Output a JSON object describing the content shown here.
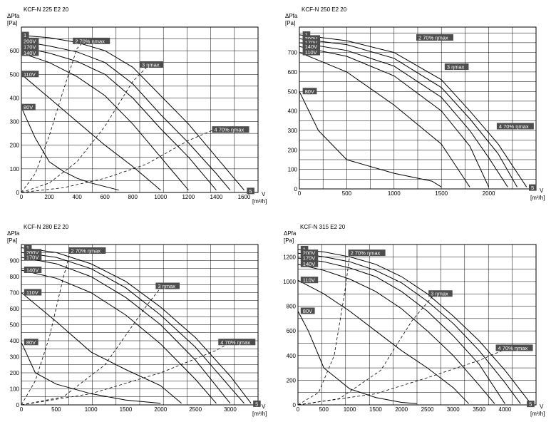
{
  "chart_data": [
    {
      "type": "line",
      "title": "KCF-N 225 E2 20",
      "ylabel": "ΔPfa",
      "yunit": "[Pa]",
      "xlabel": "V",
      "xunit": "[m³/h]",
      "xlim": [
        0,
        1700
      ],
      "ylim": [
        0,
        700
      ],
      "xticks": [
        0,
        200,
        400,
        600,
        800,
        1000,
        1200,
        1400,
        1600
      ],
      "yticks": [
        0,
        100,
        200,
        300,
        400,
        500,
        600
      ],
      "grid": true,
      "series": [
        {
          "name": "",
          "x": [
            0,
            200,
            400,
            600,
            800,
            1000,
            1200,
            1400,
            1600
          ],
          "y": [
            665,
            655,
            635,
            600,
            530,
            410,
            290,
            150,
            10
          ]
        },
        {
          "name": "200V",
          "x": [
            0,
            200,
            400,
            600,
            800,
            1000,
            1200,
            1400,
            1500
          ],
          "y": [
            640,
            620,
            595,
            550,
            460,
            330,
            210,
            80,
            10
          ]
        },
        {
          "name": "170V",
          "x": [
            0,
            200,
            400,
            600,
            800,
            1000,
            1200,
            1400
          ],
          "y": [
            615,
            590,
            555,
            500,
            400,
            270,
            150,
            10
          ]
        },
        {
          "name": "140V",
          "x": [
            0,
            200,
            400,
            600,
            800,
            1000,
            1100,
            1200
          ],
          "y": [
            590,
            550,
            490,
            410,
            290,
            150,
            80,
            10
          ]
        },
        {
          "name": "110V",
          "x": [
            0,
            200,
            400,
            600,
            800,
            900,
            1000
          ],
          "y": [
            500,
            400,
            300,
            200,
            110,
            60,
            10
          ]
        },
        {
          "name": "80V",
          "x": [
            0,
            100,
            200,
            300,
            400,
            500,
            600,
            700
          ],
          "y": [
            360,
            230,
            130,
            90,
            60,
            40,
            25,
            10
          ]
        }
      ],
      "system_lines": [
        {
          "name": "2 70% ηmax",
          "x": [
            0,
            100,
            200,
            300,
            400,
            450
          ],
          "y": [
            0,
            80,
            240,
            430,
            610,
            640
          ]
        },
        {
          "name": "3 ηmax",
          "x": [
            0,
            200,
            400,
            600,
            800,
            900
          ],
          "y": [
            0,
            40,
            130,
            280,
            470,
            530
          ]
        },
        {
          "name": "4 70% ηmax",
          "x": [
            0,
            300,
            600,
            900,
            1200,
            1400
          ],
          "y": [
            0,
            20,
            60,
            120,
            220,
            270
          ]
        }
      ],
      "labels": [
        {
          "text": "1",
          "x": 10,
          "y": 665
        },
        {
          "text": "200V",
          "x": 10,
          "y": 640
        },
        {
          "text": "170V",
          "x": 10,
          "y": 615
        },
        {
          "text": "140V",
          "x": 10,
          "y": 590
        },
        {
          "text": "110V",
          "x": 10,
          "y": 500
        },
        {
          "text": "80V",
          "x": 10,
          "y": 360
        },
        {
          "text": "2 70% ηmax",
          "x": 380,
          "y": 640
        },
        {
          "text": "3 ηmax",
          "x": 860,
          "y": 540
        },
        {
          "text": "4 70% ηmax",
          "x": 1380,
          "y": 265
        },
        {
          "text": "5",
          "x": 1630,
          "y": 5
        }
      ]
    },
    {
      "type": "line",
      "title": "KCF-N 250 E2 20",
      "ylabel": "ΔPfa",
      "yunit": "[Pa]",
      "xlabel": "V",
      "xunit": "[m³/h]",
      "xlim": [
        0,
        2500
      ],
      "ylim": [
        0,
        830
      ],
      "xticks": [
        0,
        500,
        1000,
        1500,
        2000
      ],
      "yticks": [
        0,
        100,
        200,
        300,
        400,
        500,
        600,
        700
      ],
      "grid": true,
      "series": [
        {
          "name": "",
          "x": [
            0,
            500,
            1000,
            1500,
            1800,
            2100,
            2400
          ],
          "y": [
            790,
            760,
            700,
            560,
            400,
            230,
            10
          ]
        },
        {
          "name": "200V",
          "x": [
            0,
            500,
            1000,
            1500,
            1800,
            2100,
            2300
          ],
          "y": [
            770,
            740,
            670,
            520,
            360,
            180,
            10
          ]
        },
        {
          "name": "170V",
          "x": [
            0,
            500,
            1000,
            1500,
            1800,
            2000,
            2200
          ],
          "y": [
            750,
            710,
            630,
            470,
            300,
            160,
            10
          ]
        },
        {
          "name": "140V",
          "x": [
            0,
            500,
            1000,
            1500,
            1800,
            2000
          ],
          "y": [
            730,
            680,
            580,
            400,
            220,
            10
          ]
        },
        {
          "name": "110V",
          "x": [
            0,
            500,
            1000,
            1500,
            1800
          ],
          "y": [
            700,
            600,
            430,
            230,
            10
          ]
        },
        {
          "name": "80V",
          "x": [
            0,
            200,
            500,
            1000,
            1400,
            1500
          ],
          "y": [
            500,
            300,
            150,
            80,
            40,
            10
          ]
        }
      ],
      "system_lines": [],
      "labels": [
        {
          "text": "1",
          "x": 50,
          "y": 790
        },
        {
          "text": "200V",
          "x": 50,
          "y": 770
        },
        {
          "text": "170V",
          "x": 50,
          "y": 750
        },
        {
          "text": "140V",
          "x": 50,
          "y": 730
        },
        {
          "text": "110V",
          "x": 50,
          "y": 700
        },
        {
          "text": "80V",
          "x": 50,
          "y": 500
        },
        {
          "text": "2 70% ηmax",
          "x": 1250,
          "y": 775
        },
        {
          "text": "3 ηmax",
          "x": 1550,
          "y": 625
        },
        {
          "text": "4 70% ηmax",
          "x": 2100,
          "y": 320
        },
        {
          "text": "5",
          "x": 2440,
          "y": 5
        }
      ]
    },
    {
      "type": "line",
      "title": "KCF-N 280 E2 20",
      "ylabel": "ΔPfa",
      "yunit": "[Pa]",
      "xlabel": "V",
      "xunit": "[m³/h]",
      "xlim": [
        0,
        3400
      ],
      "ylim": [
        0,
        1000
      ],
      "xticks": [
        0,
        500,
        1000,
        1500,
        2000,
        2500,
        3000
      ],
      "yticks": [
        0,
        100,
        200,
        300,
        400,
        500,
        600,
        700,
        800,
        900
      ],
      "grid": true,
      "series": [
        {
          "name": "",
          "x": [
            0,
            500,
            1000,
            1500,
            2000,
            2500,
            3000,
            3300
          ],
          "y": [
            980,
            950,
            880,
            770,
            610,
            420,
            180,
            10
          ]
        },
        {
          "name": "200V",
          "x": [
            0,
            500,
            1000,
            1500,
            2000,
            2500,
            3000,
            3200
          ],
          "y": [
            950,
            920,
            850,
            730,
            560,
            360,
            110,
            10
          ]
        },
        {
          "name": "170V",
          "x": [
            0,
            500,
            1000,
            1500,
            2000,
            2500,
            3000
          ],
          "y": [
            920,
            880,
            800,
            670,
            500,
            280,
            10
          ]
        },
        {
          "name": "140V",
          "x": [
            0,
            500,
            1000,
            1500,
            2000,
            2500,
            2800
          ],
          "y": [
            840,
            790,
            700,
            560,
            380,
            160,
            10
          ]
        },
        {
          "name": "110V",
          "x": [
            0,
            500,
            1000,
            1500,
            2000,
            2300
          ],
          "y": [
            700,
            520,
            330,
            220,
            120,
            10
          ]
        },
        {
          "name": "80V",
          "x": [
            0,
            200,
            500,
            1000,
            1500,
            2000
          ],
          "y": [
            390,
            200,
            130,
            70,
            30,
            10
          ]
        }
      ],
      "system_lines": [
        {
          "name": "2 70% ηmax",
          "x": [
            0,
            200,
            400,
            600,
            700
          ],
          "y": [
            0,
            150,
            420,
            790,
            950
          ]
        },
        {
          "name": "3 ηmax",
          "x": [
            0,
            600,
            1200,
            1800,
            2000
          ],
          "y": [
            0,
            50,
            250,
            620,
            730
          ]
        },
        {
          "name": "4 70% ηmax",
          "x": [
            0,
            1000,
            2000,
            2800,
            3000
          ],
          "y": [
            0,
            70,
            200,
            340,
            390
          ]
        }
      ],
      "labels": [
        {
          "text": "1",
          "x": 60,
          "y": 980
        },
        {
          "text": "200V",
          "x": 60,
          "y": 950
        },
        {
          "text": "170V",
          "x": 60,
          "y": 920
        },
        {
          "text": "140V",
          "x": 60,
          "y": 840
        },
        {
          "text": "110V",
          "x": 60,
          "y": 700
        },
        {
          "text": "80V",
          "x": 60,
          "y": 390
        },
        {
          "text": "2 70% ηmax",
          "x": 700,
          "y": 960
        },
        {
          "text": "3 ηmax",
          "x": 1950,
          "y": 740
        },
        {
          "text": "4 70% ηmax",
          "x": 2850,
          "y": 390
        },
        {
          "text": "5",
          "x": 3350,
          "y": 5
        }
      ]
    },
    {
      "type": "line",
      "title": "KCF-N 315 E2 20",
      "ylabel": "ΔPfa",
      "yunit": "[Pa]",
      "xlabel": "V",
      "xunit": "[m³/h]",
      "xlim": [
        0,
        4600
      ],
      "ylim": [
        0,
        1300
      ],
      "xticks": [
        0,
        500,
        1000,
        1500,
        2000,
        2500,
        3000,
        3500,
        4000
      ],
      "yticks": [
        0,
        200,
        400,
        600,
        800,
        1000,
        1200
      ],
      "grid": true,
      "series": [
        {
          "name": "",
          "x": [
            0,
            500,
            1000,
            1500,
            2000,
            2500,
            3000,
            3500,
            4000,
            4500
          ],
          "y": [
            1260,
            1240,
            1200,
            1140,
            1040,
            900,
            720,
            520,
            280,
            10
          ]
        },
        {
          "name": "200V",
          "x": [
            0,
            500,
            1000,
            1500,
            2000,
            2500,
            3000,
            3500,
            4000,
            4300
          ],
          "y": [
            1230,
            1200,
            1160,
            1090,
            990,
            840,
            660,
            440,
            180,
            10
          ]
        },
        {
          "name": "170V",
          "x": [
            0,
            500,
            1000,
            1500,
            2000,
            2500,
            3000,
            3500,
            4000
          ],
          "y": [
            1190,
            1160,
            1110,
            1040,
            920,
            760,
            560,
            330,
            10
          ]
        },
        {
          "name": "140V",
          "x": [
            0,
            500,
            1000,
            1500,
            2000,
            2500,
            3000,
            3500,
            3800
          ],
          "y": [
            1140,
            1090,
            1020,
            920,
            780,
            600,
            400,
            160,
            10
          ]
        },
        {
          "name": "110V",
          "x": [
            0,
            500,
            1000,
            1500,
            2000,
            2500,
            3000,
            3300
          ],
          "y": [
            1010,
            900,
            760,
            600,
            440,
            300,
            140,
            10
          ]
        },
        {
          "name": "80V",
          "x": [
            0,
            200,
            500,
            1000,
            1500,
            2000,
            2300
          ],
          "y": [
            760,
            600,
            300,
            130,
            60,
            20,
            10
          ]
        }
      ],
      "system_lines": [
        {
          "name": "2 70% ηmax",
          "x": [
            0,
            400,
            700,
            900,
            1000
          ],
          "y": [
            0,
            100,
            400,
            900,
            1210
          ]
        },
        {
          "name": "3 ηmax",
          "x": [
            0,
            800,
            1600,
            2200,
            2600
          ],
          "y": [
            0,
            50,
            280,
            680,
            880
          ]
        },
        {
          "name": "4 70% ηmax",
          "x": [
            0,
            1500,
            2500,
            3500,
            4000
          ],
          "y": [
            0,
            90,
            220,
            360,
            450
          ]
        }
      ],
      "labels": [
        {
          "text": "1",
          "x": 80,
          "y": 1260
        },
        {
          "text": "200V",
          "x": 80,
          "y": 1230
        },
        {
          "text": "170V",
          "x": 80,
          "y": 1190
        },
        {
          "text": "140V",
          "x": 80,
          "y": 1140
        },
        {
          "text": "110V",
          "x": 80,
          "y": 1010
        },
        {
          "text": "80V",
          "x": 80,
          "y": 760
        },
        {
          "text": "2 70% ηmax",
          "x": 1000,
          "y": 1230
        },
        {
          "text": "3 ηmax",
          "x": 2550,
          "y": 900
        },
        {
          "text": "4 70% ηmax",
          "x": 3850,
          "y": 460
        },
        {
          "text": "5",
          "x": 4450,
          "y": 5
        }
      ]
    }
  ]
}
